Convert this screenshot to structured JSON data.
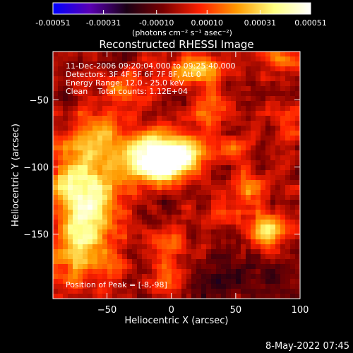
{
  "colorbar": {
    "tick_labels": [
      "-0.00051",
      "-0.00031",
      "-0.00010",
      "0.00010",
      "0.00031",
      "0.00051"
    ],
    "tick_values": [
      -0.00051,
      -0.00031,
      -0.0001,
      0.0001,
      0.00031,
      0.00051
    ],
    "range": [
      -0.00051,
      0.00051
    ],
    "unit_label": "(photons cm⁻² s⁻¹ asec⁻²)",
    "palette": [
      "#0000ff",
      "#5a00b4",
      "#1a0014",
      "#7a0000",
      "#ff2000",
      "#ff9a00",
      "#ffff80",
      "#ffffff"
    ]
  },
  "chart_data": {
    "type": "heatmap",
    "title": "Reconstructed RHESSI Image",
    "xlabel": "Heliocentric X (arcsec)",
    "ylabel": "Heliocentric Y (arcsec)",
    "xlim": [
      -92,
      100
    ],
    "ylim": [
      -198,
      -14
    ],
    "x_ticks": [
      -50,
      0,
      50,
      100
    ],
    "x_tick_labels": [
      "−50",
      "0",
      "50",
      "100"
    ],
    "y_ticks": [
      -50,
      -100,
      -150
    ],
    "y_tick_labels": [
      "−50",
      "−100",
      "−150"
    ],
    "annotations": [
      "11-Dec-2006 09:20:04.000 to 09:25:40.000",
      "Detectors: 3F 4F 5F 6F 7F 8F, Att 0",
      "Energy Range: 12.0 - 25.0 keV",
      "Clean    Total counts: 1.12E+04"
    ],
    "peak_label": "Position of Peak = [-8,-98]",
    "peak": [
      -8,
      -98
    ],
    "blobs": [
      {
        "x": -8,
        "y": -98,
        "amp": 0.00051,
        "sx": 14,
        "sy": 10
      },
      {
        "x": -20,
        "y": -90,
        "amp": 0.00032,
        "sx": 22,
        "sy": 14
      },
      {
        "x": 10,
        "y": -88,
        "amp": 0.00025,
        "sx": 16,
        "sy": 10
      },
      {
        "x": -62,
        "y": -128,
        "amp": 0.00046,
        "sx": 14,
        "sy": 22
      },
      {
        "x": -82,
        "y": -105,
        "amp": 0.0003,
        "sx": 10,
        "sy": 14
      },
      {
        "x": -78,
        "y": -160,
        "amp": 0.00028,
        "sx": 12,
        "sy": 18
      },
      {
        "x": -60,
        "y": -75,
        "amp": 0.00024,
        "sx": 14,
        "sy": 12
      },
      {
        "x": 75,
        "y": -148,
        "amp": 0.0004,
        "sx": 9,
        "sy": 9
      },
      {
        "x": 60,
        "y": -115,
        "amp": 0.00026,
        "sx": 8,
        "sy": 10
      },
      {
        "x": -38,
        "y": -40,
        "amp": 0.00028,
        "sx": 12,
        "sy": 8
      },
      {
        "x": 20,
        "y": -28,
        "amp": 0.0003,
        "sx": 16,
        "sy": 8
      },
      {
        "x": 85,
        "y": -20,
        "amp": 0.00022,
        "sx": 10,
        "sy": 6
      },
      {
        "x": 30,
        "y": -60,
        "amp": 0.0002,
        "sx": 10,
        "sy": 10
      },
      {
        "x": 0,
        "y": -160,
        "amp": 0.00022,
        "sx": 10,
        "sy": 14
      },
      {
        "x": -5,
        "y": -185,
        "amp": 0.0002,
        "sx": 12,
        "sy": 8
      },
      {
        "x": -45,
        "y": -175,
        "amp": 0.00018,
        "sx": 10,
        "sy": 10
      },
      {
        "x": 40,
        "y": -135,
        "amp": 0.00015,
        "sx": 8,
        "sy": 8
      },
      {
        "x": 50,
        "y": -85,
        "amp": 0.00016,
        "sx": 8,
        "sy": 8
      },
      {
        "x": 90,
        "y": -70,
        "amp": 0.00014,
        "sx": 8,
        "sy": 10
      },
      {
        "x": 15,
        "y": -185,
        "amp": -0.00012,
        "sx": 30,
        "sy": 14
      },
      {
        "x": 80,
        "y": -185,
        "amp": -0.0001,
        "sx": 20,
        "sy": 12
      }
    ],
    "background": -4e-05
  },
  "footer": {
    "timestamp": "8-May-2022 07:45"
  }
}
